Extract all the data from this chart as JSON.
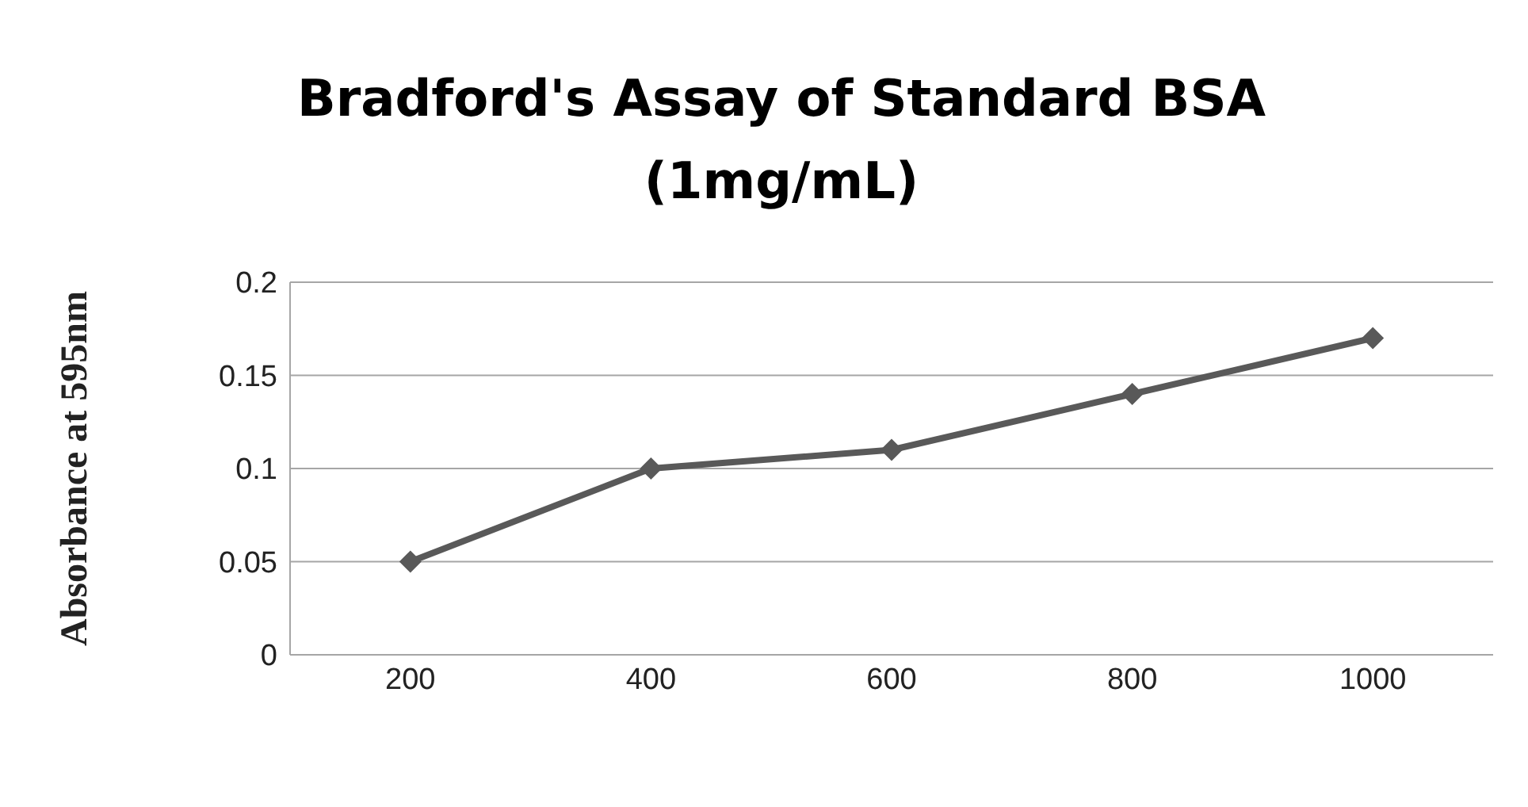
{
  "chart_data": {
    "type": "line",
    "title": "Bradford's Assay of Standard BSA (1mg/mL)",
    "ylabel": "Absorbance at 595nm",
    "categories": [
      "200",
      "400",
      "600",
      "800",
      "1000"
    ],
    "series": [
      {
        "color": "#595959",
        "values": [
          0.05,
          0.1,
          0.11,
          0.14,
          0.17
        ]
      }
    ],
    "ylim": [
      0,
      0.2
    ],
    "yticks": [
      0,
      0.05,
      0.1,
      0.15,
      0.2
    ],
    "grid": "y",
    "legend": false,
    "marker": "diamond",
    "line_style": "solid"
  }
}
